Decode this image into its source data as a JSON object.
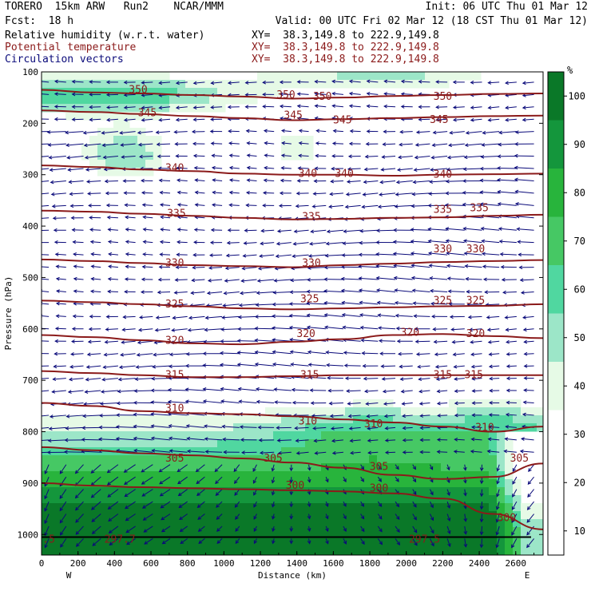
{
  "header": {
    "model": "TORERO  15km ARW   Run2    NCAR/MMM",
    "init": "Init: 06 UTC Thu 01 Mar 12",
    "fcst": "Fcst:  18 h",
    "valid": "Valid: 00 UTC Fri 02 Mar 12 (18 CST Thu 01 Mar 12)",
    "fields": [
      {
        "name": "Relative humidity (w.r.t. water)",
        "xy": "XY=  38.3,149.8 to 222.9,149.8",
        "color": "#000000"
      },
      {
        "name": "Potential temperature",
        "xy": "XY=  38.3,149.8 to 222.9,149.8",
        "color": "#8b1a1a"
      },
      {
        "name": "Circulation vectors",
        "xy": "XY=  38.3,149.8 to 222.9,149.8",
        "color": "#0a0a7a"
      }
    ]
  },
  "chart_data": {
    "type": "cross-section",
    "xlabel": "Distance (km)",
    "ylabel": "Pressure (hPa)",
    "x_ticks": [
      "0",
      "200",
      "400",
      "600",
      "800",
      "1000",
      "1200",
      "1400",
      "1600",
      "1800",
      "2000",
      "2200",
      "2400",
      "2600"
    ],
    "y_ticks": [
      "100",
      "200",
      "300",
      "400",
      "500",
      "600",
      "700",
      "800",
      "900",
      "1000"
    ],
    "left_end": "W",
    "right_end": "E",
    "xlim": [
      0,
      2750
    ],
    "ylim": [
      1040,
      100
    ],
    "colorbar": {
      "unit": "%",
      "ticks": [
        "10",
        "20",
        "30",
        "40",
        "50",
        "60",
        "70",
        "80",
        "90",
        "100"
      ]
    },
    "theta_contours": [
      {
        "value": 350,
        "p": [
          135,
          140,
          142,
          145,
          148,
          152,
          150,
          147,
          145,
          143,
          142
        ]
      },
      {
        "value": 345,
        "p": [
          175,
          178,
          182,
          186,
          190,
          194,
          192,
          190,
          188,
          186,
          185
        ]
      },
      {
        "value": 340,
        "p": [
          282,
          285,
          290,
          293,
          298,
          300,
          300,
          302,
          300,
          299,
          298
        ]
      },
      {
        "value": 335,
        "p": [
          370,
          372,
          376,
          380,
          384,
          387,
          386,
          384,
          383,
          380,
          378
        ]
      },
      {
        "value": 330,
        "p": [
          465,
          468,
          472,
          476,
          478,
          480,
          476,
          473,
          470,
          468,
          466
        ]
      },
      {
        "value": 325,
        "p": [
          545,
          548,
          552,
          556,
          560,
          562,
          560,
          558,
          556,
          555,
          552
        ]
      },
      {
        "value": 320,
        "p": [
          612,
          616,
          622,
          628,
          630,
          625,
          620,
          612,
          610,
          614,
          618
        ]
      },
      {
        "value": 315,
        "p": [
          682,
          686,
          690,
          694,
          694,
          692,
          690,
          690,
          690,
          690,
          690
        ]
      },
      {
        "value": 310,
        "p": [
          744,
          750,
          760,
          764,
          766,
          770,
          776,
          782,
          790,
          800,
          790
        ]
      },
      {
        "value": 305,
        "p": [
          830,
          836,
          842,
          846,
          852,
          860,
          870,
          884,
          892,
          888,
          862
        ]
      },
      {
        "value": 300,
        "p": [
          900,
          905,
          908,
          910,
          912,
          914,
          916,
          920,
          930,
          960,
          990
        ]
      }
    ],
    "contour_labels": [
      {
        "text": "350",
        "x": 530,
        "p": 135
      },
      {
        "text": "350",
        "x": 1340,
        "p": 145
      },
      {
        "text": "350",
        "x": 1540,
        "p": 148
      },
      {
        "text": "350",
        "x": 2200,
        "p": 148
      },
      {
        "text": "345",
        "x": 580,
        "p": 180
      },
      {
        "text": "345",
        "x": 1380,
        "p": 185
      },
      {
        "text": "345",
        "x": 1650,
        "p": 194
      },
      {
        "text": "345",
        "x": 2180,
        "p": 193
      },
      {
        "text": "340",
        "x": 730,
        "p": 287
      },
      {
        "text": "340",
        "x": 1460,
        "p": 298
      },
      {
        "text": "340",
        "x": 1660,
        "p": 298
      },
      {
        "text": "340",
        "x": 2200,
        "p": 300
      },
      {
        "text": "335",
        "x": 740,
        "p": 376
      },
      {
        "text": "335",
        "x": 1480,
        "p": 382
      },
      {
        "text": "335",
        "x": 2200,
        "p": 368
      },
      {
        "text": "335",
        "x": 2400,
        "p": 365
      },
      {
        "text": "330",
        "x": 730,
        "p": 472
      },
      {
        "text": "330",
        "x": 1480,
        "p": 472
      },
      {
        "text": "330",
        "x": 2200,
        "p": 445
      },
      {
        "text": "330",
        "x": 2380,
        "p": 445
      },
      {
        "text": "325",
        "x": 730,
        "p": 552
      },
      {
        "text": "325",
        "x": 1470,
        "p": 542
      },
      {
        "text": "325",
        "x": 2200,
        "p": 545
      },
      {
        "text": "325",
        "x": 2380,
        "p": 545
      },
      {
        "text": "320",
        "x": 730,
        "p": 623
      },
      {
        "text": "320",
        "x": 1450,
        "p": 610
      },
      {
        "text": "320",
        "x": 2020,
        "p": 607
      },
      {
        "text": "320",
        "x": 2380,
        "p": 610
      },
      {
        "text": "315",
        "x": 730,
        "p": 690
      },
      {
        "text": "315",
        "x": 1470,
        "p": 690
      },
      {
        "text": "315",
        "x": 2200,
        "p": 690
      },
      {
        "text": "315",
        "x": 2370,
        "p": 690
      },
      {
        "text": "310",
        "x": 730,
        "p": 755
      },
      {
        "text": "310",
        "x": 1460,
        "p": 780
      },
      {
        "text": "310",
        "x": 1820,
        "p": 785
      },
      {
        "text": "310",
        "x": 2430,
        "p": 792
      },
      {
        "text": "305",
        "x": 730,
        "p": 852
      },
      {
        "text": "305",
        "x": 1270,
        "p": 852
      },
      {
        "text": "305",
        "x": 1850,
        "p": 868
      },
      {
        "text": "305",
        "x": 2620,
        "p": 852
      },
      {
        "text": "300",
        "x": 1390,
        "p": 905
      },
      {
        "text": "300",
        "x": 1850,
        "p": 910
      },
      {
        "text": "300",
        "x": 2550,
        "p": 968
      },
      {
        "text": ".5",
        "x": 40,
        "p": 1010
      },
      {
        "text": "297.7",
        "x": 430,
        "p": 1010
      },
      {
        "text": "297.5",
        "x": 2100,
        "p": 1010
      }
    ]
  },
  "colors": {
    "theta": "#8b1a1a",
    "vectors": "#0a0a7a",
    "rh_scale": [
      "#ffffff",
      "#ffffff",
      "#ffffff",
      "#e6fae6",
      "#9ce6c8",
      "#50d7a0",
      "#46c864",
      "#28b43c",
      "#14963c",
      "#0a7828"
    ]
  }
}
